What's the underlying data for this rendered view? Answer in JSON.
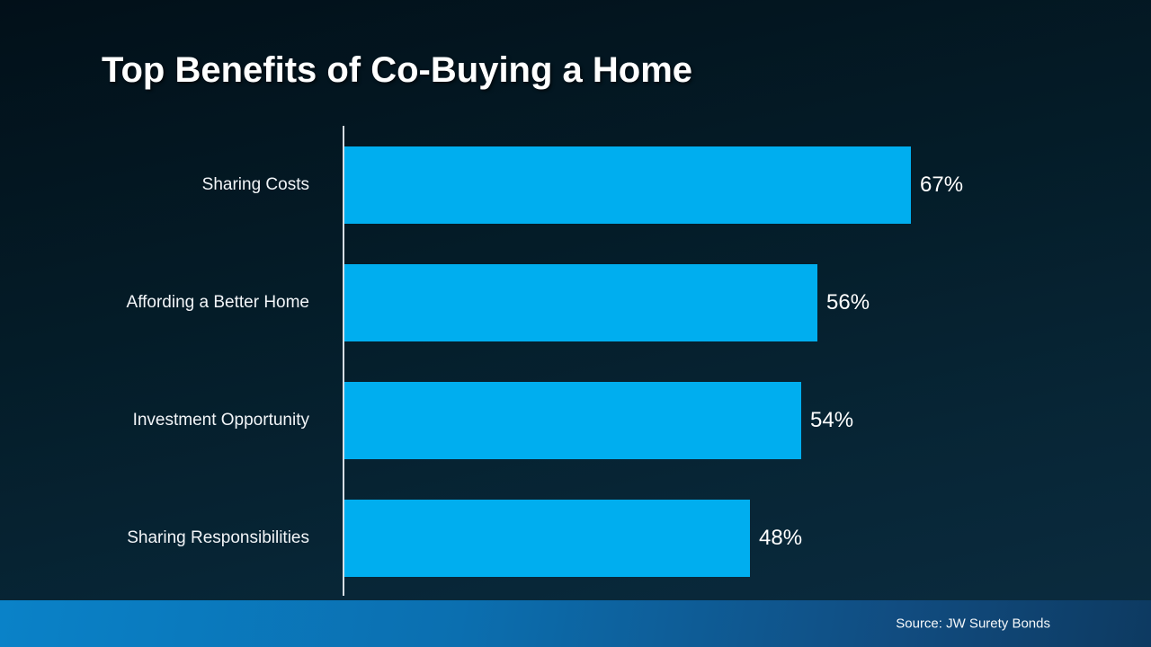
{
  "title": "Top Benefits of Co-Buying a Home",
  "source": "Source: JW Surety Bonds",
  "colors": {
    "bar": "#00aeef",
    "background_top": "#021019",
    "background_bottom": "#0b2c40",
    "footer_left": "#0a82c8",
    "footer_right": "#0d3a61",
    "axis_line": "#e8eef3",
    "text": "#ffffff"
  },
  "chart_data": {
    "type": "bar",
    "orientation": "horizontal",
    "title": "Top Benefits of Co-Buying a Home",
    "categories": [
      "Sharing Costs",
      "Affording a Better Home",
      "Investment Opportunity",
      "Sharing Responsibilities"
    ],
    "values": [
      67,
      56,
      54,
      48
    ],
    "value_labels": [
      "67%",
      "56%",
      "54%",
      "48%"
    ],
    "xlabel": "",
    "ylabel": "",
    "xlim": [
      0,
      70
    ],
    "unit": "%",
    "grid": false,
    "legend": false,
    "bar_color": "#00aeef",
    "source": "Source: JW Surety Bonds"
  }
}
